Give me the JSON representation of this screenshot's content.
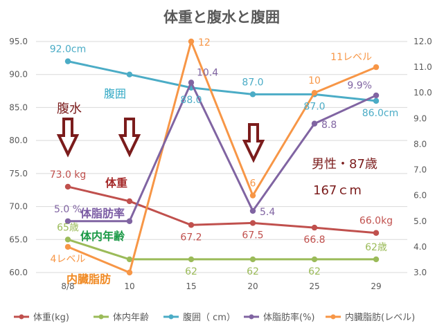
{
  "chart_data": {
    "type": "line",
    "title": "体重と腹水と腹囲",
    "categories": [
      "8/8",
      "10",
      "15",
      "20",
      "25",
      "29"
    ],
    "left_axis": {
      "min": 60,
      "max": 95,
      "step": 5,
      "ticks": [
        "60.0",
        "65.0",
        "70.0",
        "75.0",
        "80.0",
        "85.0",
        "90.0",
        "95.0"
      ]
    },
    "right_axis": {
      "min": 3,
      "max": 12,
      "step": 1,
      "ticks": [
        "3.0",
        "4.0",
        "5.0",
        "6.0",
        "7.0",
        "8.0",
        "9.0",
        "10.0",
        "11.0",
        "12.0"
      ]
    },
    "grid": true,
    "legend_position": "bottom",
    "series": [
      {
        "name": "体重(kg)",
        "axis": "left",
        "color": "#c0504d",
        "values": [
          73.0,
          70.8,
          67.2,
          67.5,
          66.8,
          66.0
        ]
      },
      {
        "name": "体内年齢",
        "axis": "left",
        "color": "#9bbb59",
        "values": [
          65,
          62,
          62,
          62,
          62,
          62
        ]
      },
      {
        "name": "腹囲（ cm）",
        "axis": "left",
        "color": "#4bacc6",
        "values": [
          92.0,
          90.0,
          88.0,
          87.0,
          87.0,
          86.0
        ]
      },
      {
        "name": "体脂肪率(%)",
        "axis": "right",
        "color": "#8064a2",
        "values": [
          5.0,
          5.0,
          10.4,
          5.4,
          8.8,
          9.9
        ]
      },
      {
        "name": "内臓脂肪(レベル)",
        "axis": "right",
        "color": "#f79646",
        "values": [
          4,
          3,
          12,
          6,
          10,
          11
        ]
      }
    ],
    "data_labels": [
      {
        "series": 2,
        "index": 0,
        "text": "92.0cm",
        "pos": "above"
      },
      {
        "series": 2,
        "index": 2,
        "text": "88.0",
        "pos": "below"
      },
      {
        "series": 2,
        "index": 3,
        "text": "87.0",
        "pos": "above"
      },
      {
        "series": 2,
        "index": 4,
        "text": "87.0",
        "pos": "below"
      },
      {
        "series": 2,
        "index": 5,
        "text": "86.0cm",
        "pos": "belowright"
      },
      {
        "series": 0,
        "index": 0,
        "text": "73.0 kg",
        "pos": "above"
      },
      {
        "series": 0,
        "index": 2,
        "text": "67.2",
        "pos": "below"
      },
      {
        "series": 0,
        "index": 3,
        "text": "67.5",
        "pos": "below"
      },
      {
        "series": 0,
        "index": 4,
        "text": "66.8",
        "pos": "below"
      },
      {
        "series": 0,
        "index": 5,
        "text": "66.0kg",
        "pos": "above"
      },
      {
        "series": 1,
        "index": 0,
        "text": "65歳",
        "pos": "above"
      },
      {
        "series": 1,
        "index": 2,
        "text": "62",
        "pos": "below"
      },
      {
        "series": 1,
        "index": 3,
        "text": "62",
        "pos": "below"
      },
      {
        "series": 1,
        "index": 4,
        "text": "62",
        "pos": "below"
      },
      {
        "series": 1,
        "index": 5,
        "text": "62歳",
        "pos": "above"
      },
      {
        "series": 3,
        "index": 0,
        "text": "5.0 %",
        "pos": "above"
      },
      {
        "series": 3,
        "index": 2,
        "text": "10.4",
        "pos": "aboveright"
      },
      {
        "series": 3,
        "index": 3,
        "text": "5.4",
        "pos": "right"
      },
      {
        "series": 3,
        "index": 4,
        "text": "8.8",
        "pos": "right"
      },
      {
        "series": 3,
        "index": 5,
        "text": "9.9%",
        "pos": "aboveleft"
      },
      {
        "series": 4,
        "index": 0,
        "text": "4レベル",
        "pos": "below"
      },
      {
        "series": 4,
        "index": 2,
        "text": "12",
        "pos": "right"
      },
      {
        "series": 4,
        "index": 3,
        "text": "6",
        "pos": "above"
      },
      {
        "series": 4,
        "index": 4,
        "text": "10",
        "pos": "above"
      },
      {
        "series": 4,
        "index": 5,
        "text": "11レベル",
        "pos": "aboveleft"
      }
    ],
    "annotations": {
      "fukusui": "腹水",
      "fukui": "腹囲",
      "taiju": "体重",
      "taishibou": "体脂肪率",
      "tainai_nenrei": "体内年齢",
      "naizou": "内臓脂肪",
      "profile": "男性・87歳",
      "height": "167ｃm"
    },
    "arrow_color": "#7b1c1c"
  }
}
